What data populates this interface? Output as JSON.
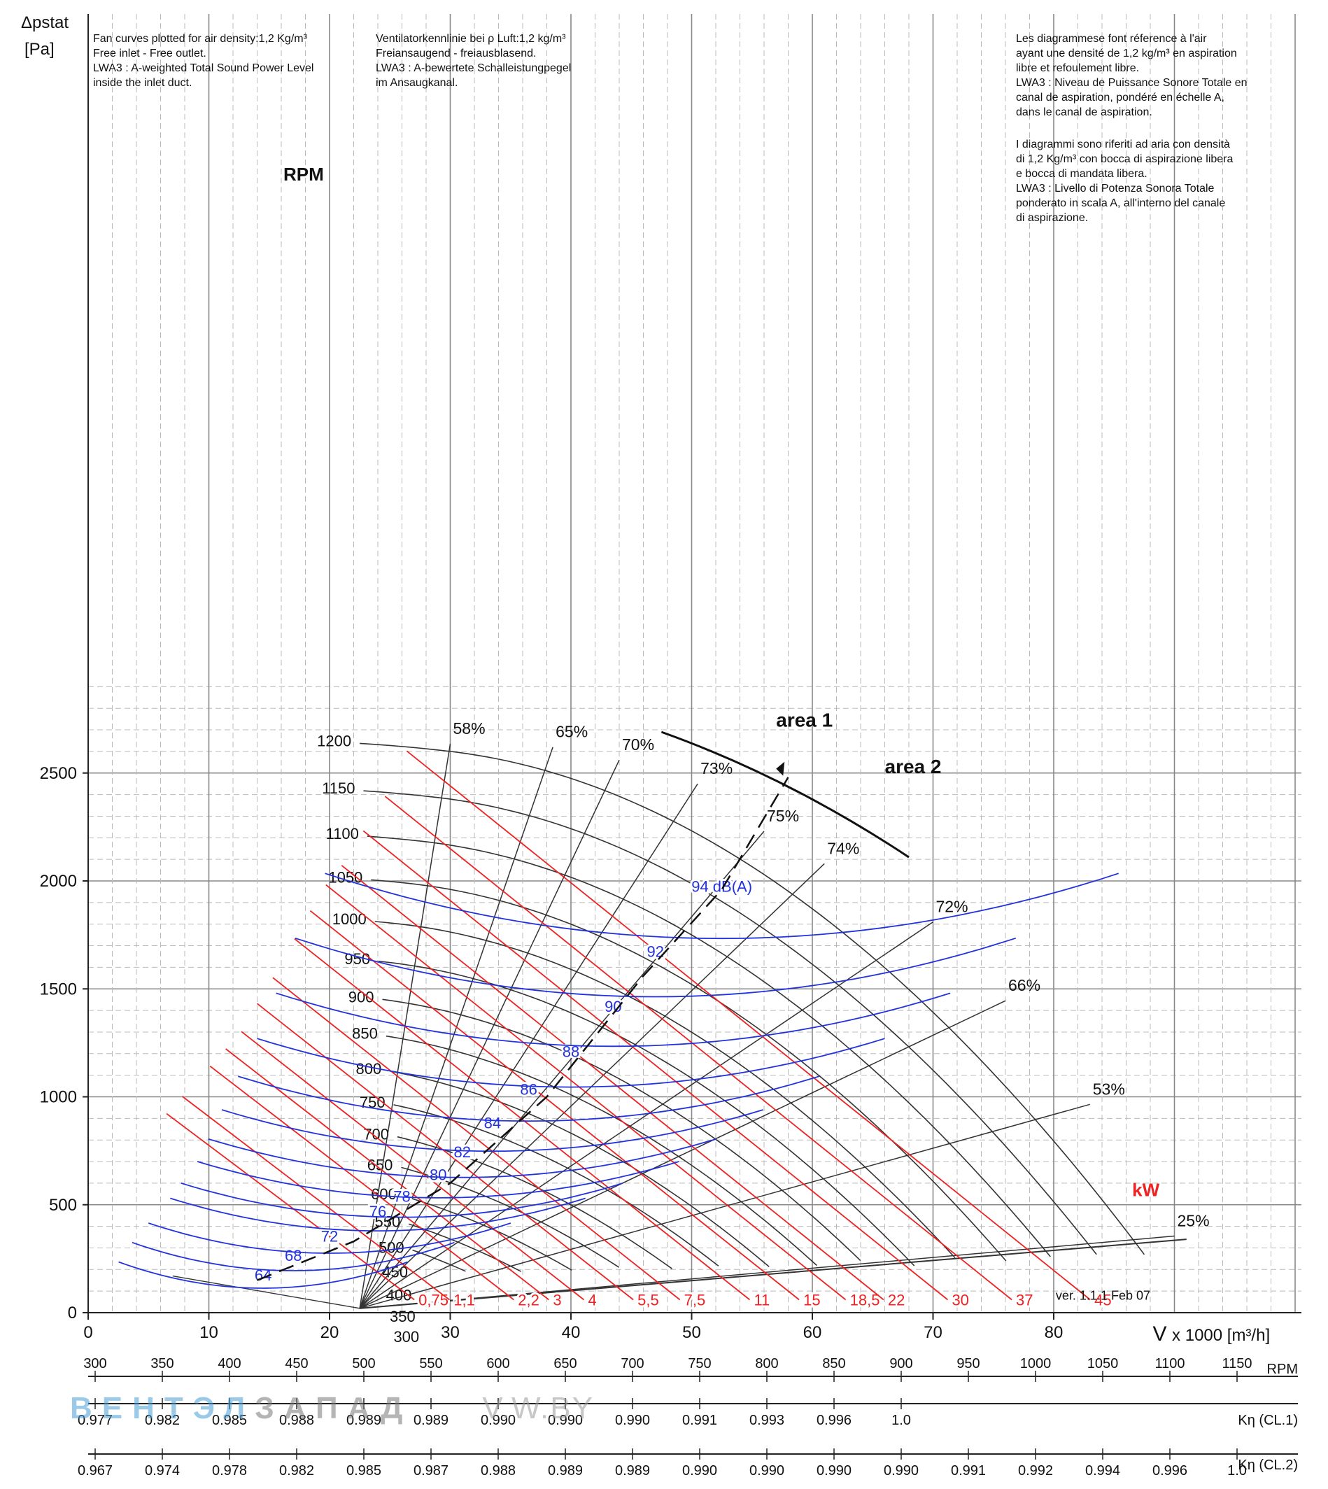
{
  "chart_data": {
    "type": "line",
    "ylabel_lines": [
      "Δpstat",
      "[Pa]"
    ],
    "xlabel_prefix": "V",
    "xlabel": "x 1000 [m³/h]",
    "xlim": [
      0,
      100
    ],
    "ylim": [
      0,
      3000
    ],
    "x_ticks": [
      0,
      10,
      20,
      30,
      40,
      50,
      60,
      70,
      80
    ],
    "y_ticks": [
      0,
      500,
      1000,
      1500,
      2000,
      2500
    ],
    "grid": true,
    "notes": {
      "en": [
        "Fan curves plotted for air density:1,2 Kg/m³",
        "Free inlet - Free outlet.",
        "LWA3 : A-weighted Total Sound Power Level",
        "inside the inlet duct."
      ],
      "de": [
        "Ventilatorkennlinie bei ρ Luft:1,2 kg/m³",
        "Freiansaugend - freiausblasend.",
        "LWA3 : A-bewertete Schalleistungpegel",
        "im Ansaugkanal."
      ],
      "fr": [
        "Les diagrammese font réference à l'air",
        "ayant une densité de 1,2 kg/m³ en aspiration",
        "libre et refoulement libre.",
        "LWA3 : Niveau de Puissance Sonore Totale en",
        "canal de aspiration, pondéré en échelle A,",
        "dans le canal de aspiration."
      ],
      "it": [
        "I diagrammi sono riferiti ad aria con densità",
        "di 1,2 Kg/m³ con bocca di aspirazione libera",
        "e bocca di mandata libera.",
        "LWA3 : Livello di Potenza Sonora Totale",
        "ponderato in scala A, all'interno del canale",
        "di aspirazione."
      ]
    },
    "rpm_title": "RPM",
    "rpm_curves": [
      {
        "rpm": 300,
        "label": "300"
      },
      {
        "rpm": 350,
        "label": "350"
      },
      {
        "rpm": 400,
        "label": "400"
      },
      {
        "rpm": 450,
        "label": "450"
      },
      {
        "rpm": 500,
        "label": "500"
      },
      {
        "rpm": 550,
        "label": "550"
      },
      {
        "rpm": 600,
        "label": "600"
      },
      {
        "rpm": 650,
        "label": "650"
      },
      {
        "rpm": 700,
        "label": "700"
      },
      {
        "rpm": 750,
        "label": "750"
      },
      {
        "rpm": 800,
        "label": "800"
      },
      {
        "rpm": 850,
        "label": "850"
      },
      {
        "rpm": 900,
        "label": "900"
      },
      {
        "rpm": 950,
        "label": "950"
      },
      {
        "rpm": 1000,
        "label": "1000"
      },
      {
        "rpm": 1050,
        "label": "1050"
      },
      {
        "rpm": 1100,
        "label": "1100"
      },
      {
        "rpm": 1150,
        "label": "1150"
      },
      {
        "rpm": 1200,
        "label": "1200"
      }
    ],
    "efficiency_lines": [
      {
        "label": "58%",
        "end": [
          30,
          2635
        ]
      },
      {
        "label": "65%",
        "end": [
          38.5,
          2620
        ]
      },
      {
        "label": "70%",
        "end": [
          44,
          2560
        ]
      },
      {
        "label": "73%",
        "end": [
          50.5,
          2450
        ]
      },
      {
        "label": "75%",
        "end": [
          56,
          2230
        ]
      },
      {
        "label": "74%",
        "end": [
          61,
          2080
        ]
      },
      {
        "label": "72%",
        "end": [
          70,
          1810
        ]
      },
      {
        "label": "66%",
        "end": [
          76,
          1445
        ]
      },
      {
        "label": "53%",
        "end": [
          83,
          965
        ]
      },
      {
        "label": "25%",
        "end": [
          90,
          355
        ]
      }
    ],
    "power_lines_kW": {
      "unit": "kW",
      "lines": [
        {
          "label": "0,75",
          "x0": 22.5,
          "y0": 250
        },
        {
          "label": "1,1",
          "x0": 23.5,
          "y0": 330
        },
        {
          "label": "2,2",
          "x0": 25.5,
          "y0": 470
        },
        {
          "label": "3",
          "x0": 26.5,
          "y0": 550
        },
        {
          "label": "4",
          "x0": 27.5,
          "y0": 630
        },
        {
          "label": "5,5",
          "x0": 28.5,
          "y0": 760
        },
        {
          "label": "7,5",
          "x0": 29.5,
          "y0": 880
        },
        {
          "label": "11",
          "x0": 31,
          "y0": 1060
        },
        {
          "label": "15",
          "x0": 32,
          "y0": 1190
        },
        {
          "label": "18,5",
          "x0": 33,
          "y0": 1310
        },
        {
          "label": "22",
          "x0": 34,
          "y0": 1400
        },
        {
          "label": "30",
          "x0": 35.5,
          "y0": 1560
        },
        {
          "label": "37",
          "x0": 37,
          "y0": 1720
        },
        {
          "label": "45",
          "x0": 38.5,
          "y0": 1930
        }
      ]
    },
    "sound_levels_dBA": [
      {
        "label": "64",
        "x": 14.5,
        "y": 175
      },
      {
        "label": "68",
        "x": 17,
        "y": 265
      },
      {
        "label": "72",
        "x": 20,
        "y": 355
      },
      {
        "label": "76",
        "x": 24,
        "y": 470
      },
      {
        "label": "78",
        "x": 26,
        "y": 540
      },
      {
        "label": "80",
        "x": 29,
        "y": 640
      },
      {
        "label": "82",
        "x": 31,
        "y": 745
      },
      {
        "label": "84",
        "x": 33.5,
        "y": 880
      },
      {
        "label": "86",
        "x": 36.5,
        "y": 1035
      },
      {
        "label": "88",
        "x": 40,
        "y": 1210
      },
      {
        "label": "90",
        "x": 43.5,
        "y": 1420
      },
      {
        "label": "92",
        "x": 47,
        "y": 1675
      },
      {
        "label": "94 dB(A)",
        "x": 52.5,
        "y": 1975
      }
    ],
    "area_labels": [
      {
        "label": "area 1",
        "x": 57,
        "y": 2715
      },
      {
        "label": "area 2",
        "x": 66,
        "y": 2500
      }
    ],
    "version": "ver. 1.1.1 Feb 07",
    "rpm_scale": {
      "label": "RPM",
      "values": [
        "300",
        "350",
        "400",
        "450",
        "500",
        "550",
        "600",
        "650",
        "700",
        "750",
        "800",
        "850",
        "900",
        "950",
        "1000",
        "1050",
        "1100",
        "1150"
      ]
    },
    "k_cl1": {
      "label": "Kη (CL.1)",
      "values": [
        "0.977",
        "0.982",
        "0.985",
        "0.988",
        "0.989",
        "0.989",
        "0.990",
        "0.990",
        "0.990",
        "0.991",
        "0.993",
        "0.996",
        "1.0"
      ]
    },
    "k_cl2": {
      "label": "Kη (CL.2)",
      "values": [
        "0.967",
        "0.974",
        "0.978",
        "0.982",
        "0.985",
        "0.987",
        "0.988",
        "0.989",
        "0.989",
        "0.990",
        "0.990",
        "0.990",
        "0.990",
        "0.991",
        "0.992",
        "0.994",
        "0.996",
        "1.0"
      ]
    },
    "colors": {
      "rpm": "#333333",
      "power": "#ee2222",
      "sound": "#2233dd",
      "grid": "#999999",
      "area": "#111111"
    }
  },
  "watermark": {
    "part1": "ВЕНТЭЛ",
    "part2": "ЗАПАД",
    "part3": "V.W.BY"
  }
}
